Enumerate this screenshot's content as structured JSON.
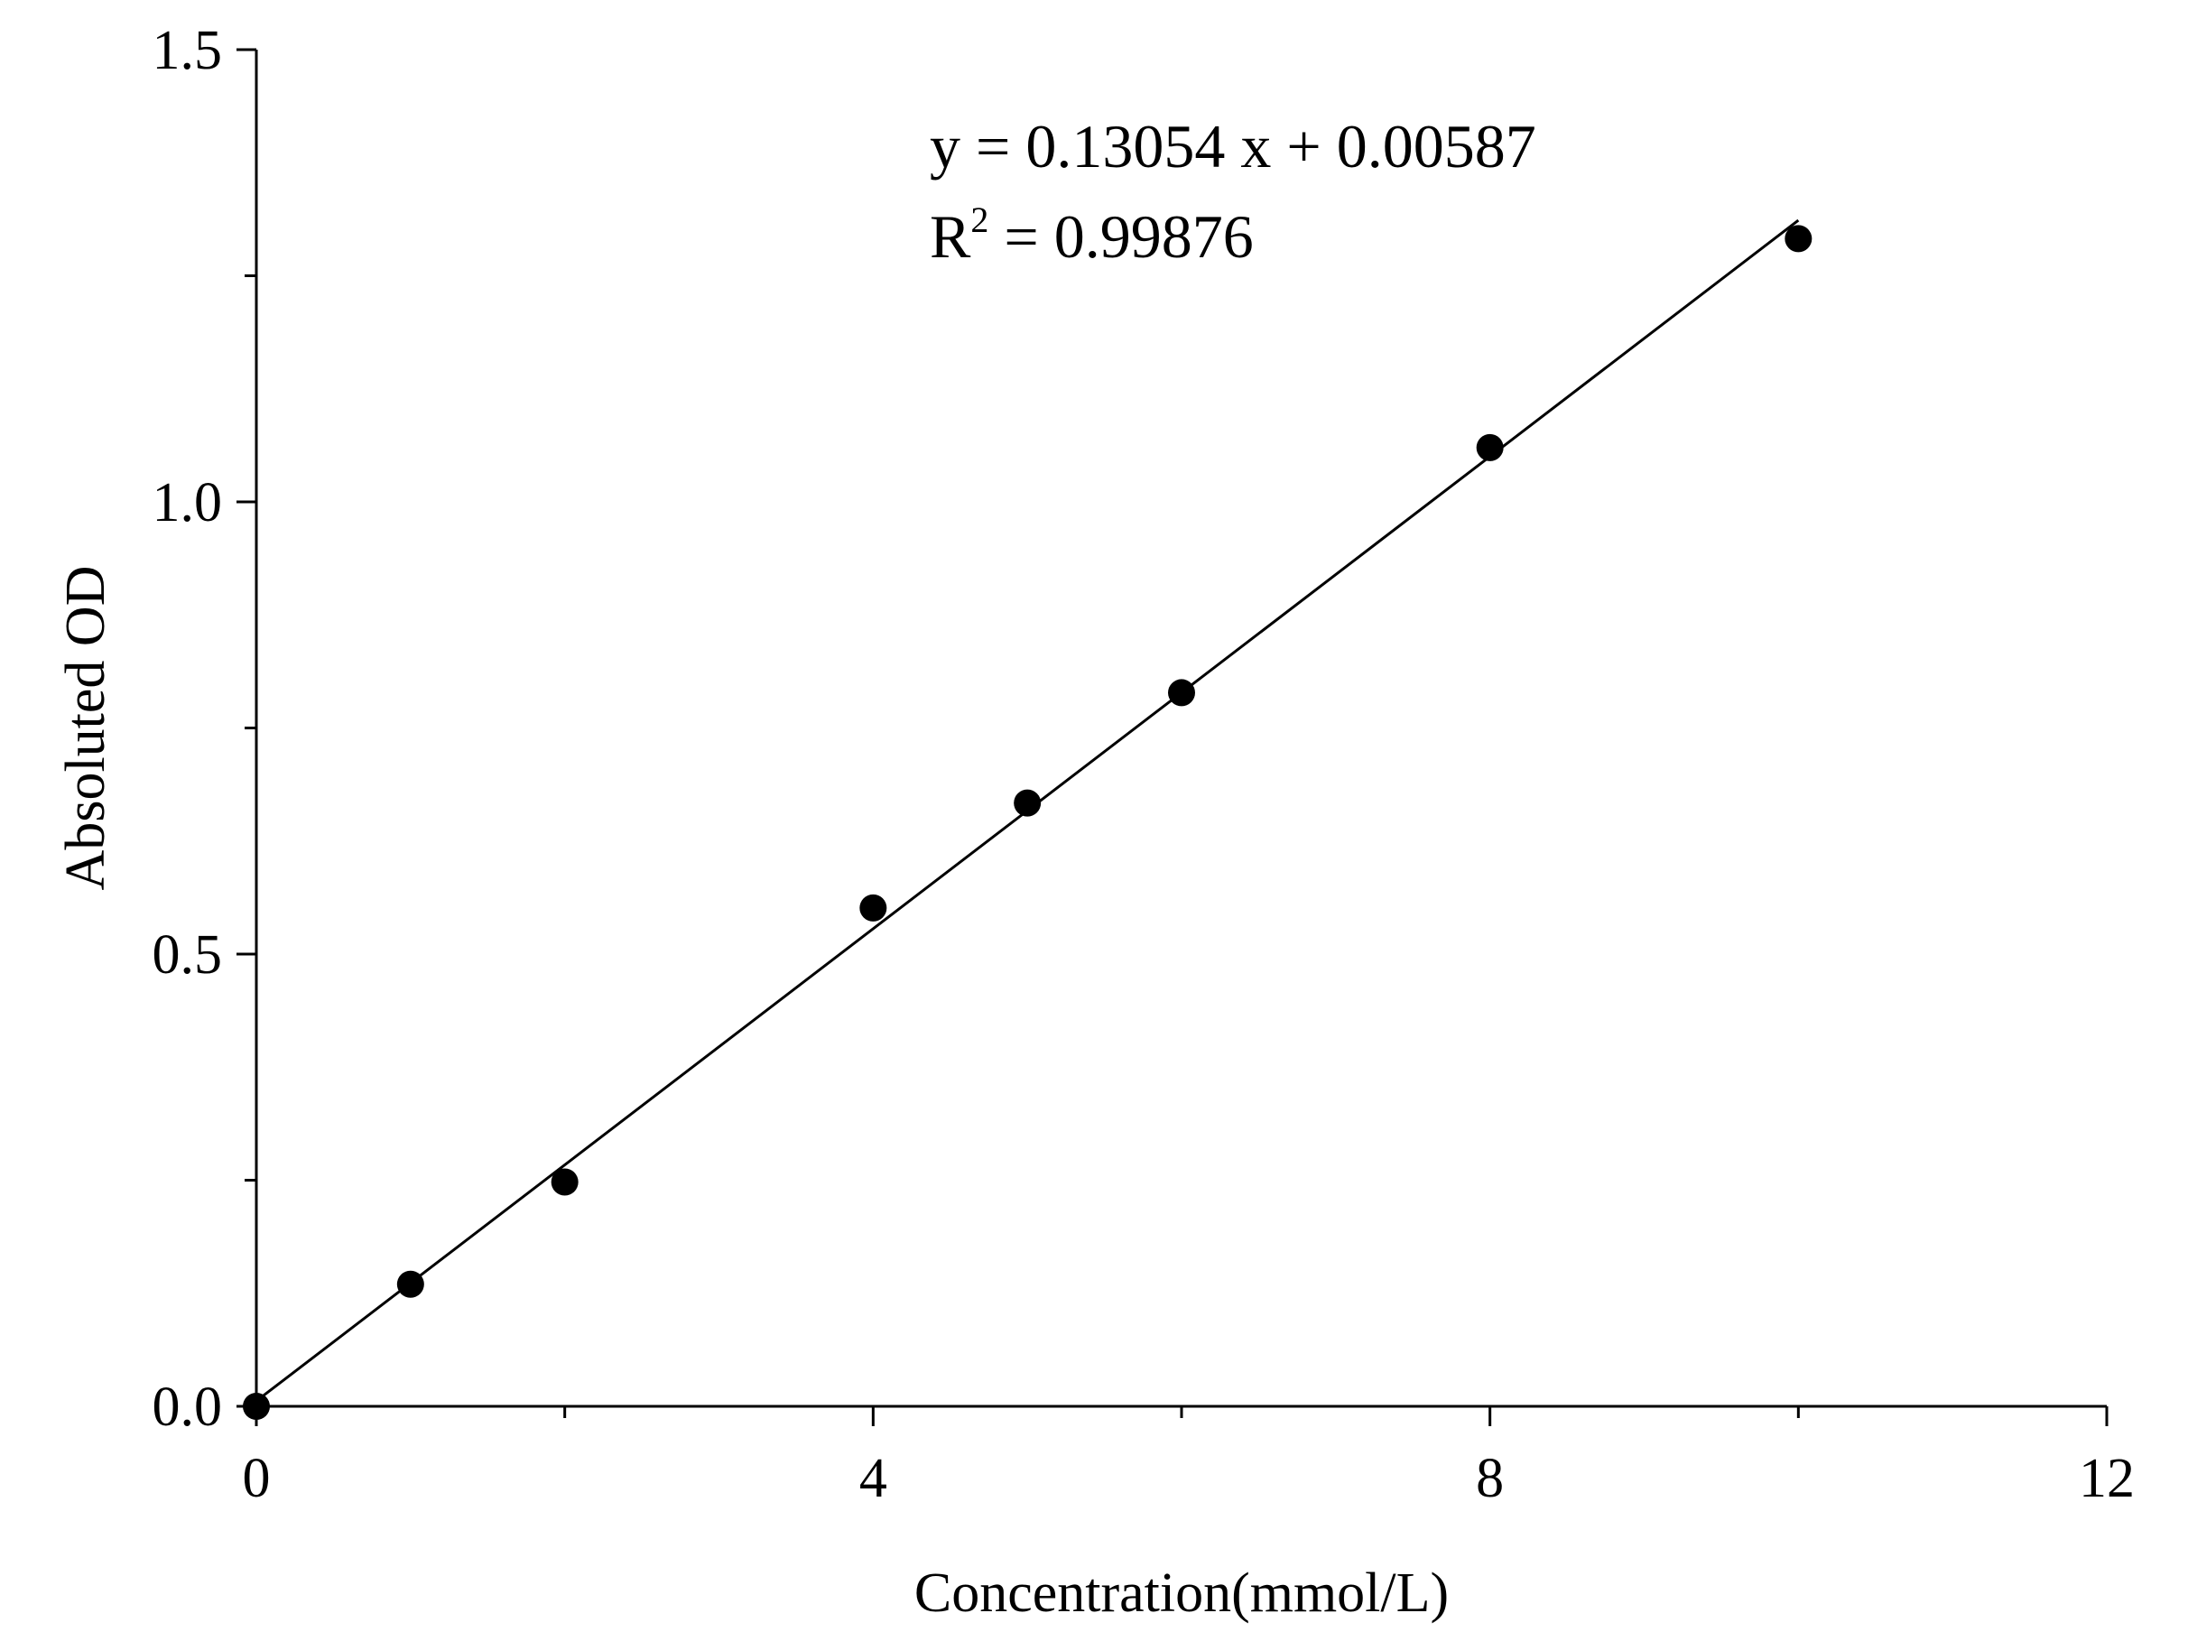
{
  "chart_data": {
    "type": "scatter",
    "title": "",
    "xlabel": "Concentration(mmol/L)",
    "ylabel": "Absoluted OD",
    "xlim": [
      0,
      12
    ],
    "ylim": [
      0,
      1.5
    ],
    "x_ticks": [
      0,
      4,
      8,
      12
    ],
    "x_tick_labels": [
      "0",
      "4",
      "8",
      "12"
    ],
    "x_minor_ticks": [
      2,
      6,
      10
    ],
    "y_ticks": [
      0,
      0.5,
      1.0,
      1.5
    ],
    "y_tick_labels": [
      "0.0",
      "0.5",
      "1.0",
      "1.5"
    ],
    "y_minor_ticks": [
      0.25,
      0.75,
      1.25
    ],
    "grid": false,
    "series": [
      {
        "x": [
          0,
          1,
          2,
          4,
          5,
          6,
          8,
          10
        ],
        "y": [
          0.0,
          0.135,
          0.248,
          0.551,
          0.667,
          0.789,
          1.06,
          1.291
        ]
      }
    ],
    "fit_line": {
      "slope": 0.13054,
      "intercept": 0.00587,
      "x_range": [
        0,
        10
      ]
    },
    "annotations": {
      "equation": "y = 0.13054 x + 0.00587",
      "r2_prefix": "R",
      "r2_sup": "2",
      "r2_value": " = 0.99876"
    },
    "colors": {
      "marker": "#000000",
      "line": "#000000",
      "background": "#ffffff"
    }
  }
}
